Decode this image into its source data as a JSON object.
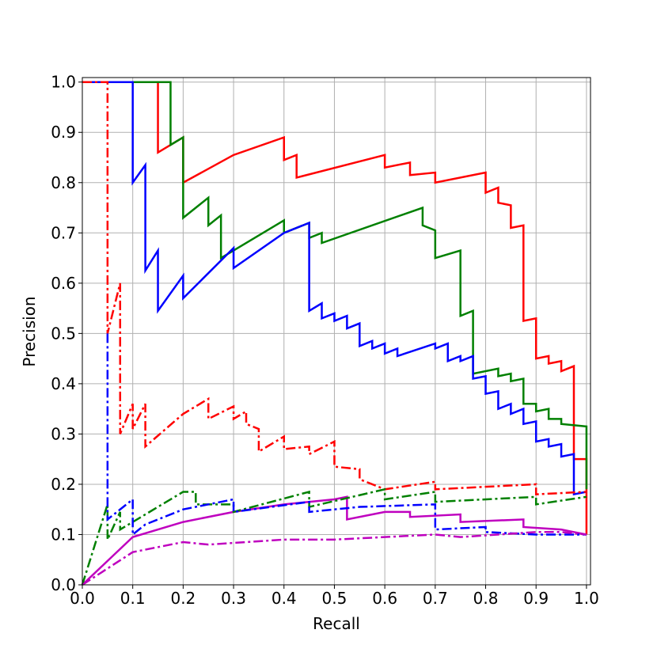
{
  "chart_data": {
    "type": "line",
    "xlabel": "Recall",
    "ylabel": "Precision",
    "xlim": [
      0,
      1.008
    ],
    "ylim": [
      0,
      1.009
    ],
    "grid": true,
    "xticks": [
      {
        "value": 0,
        "label": "0.0"
      },
      0.1,
      0.2,
      0.3,
      0.4,
      0.5,
      0.6,
      0.7,
      0.8,
      0.9,
      {
        "value": 1,
        "label": "1.0"
      }
    ],
    "yticks": [
      {
        "value": 0,
        "label": "0.0"
      },
      0.1,
      0.2,
      0.3,
      0.4,
      0.5,
      0.6,
      0.7,
      0.8,
      0.9,
      {
        "value": 1,
        "label": "1.0"
      }
    ],
    "series": [
      {
        "color": "#ff0000",
        "style": "solid",
        "x": [
          0,
          0.15,
          0.15,
          0.2,
          0.2,
          0.3,
          0.4,
          0.4,
          0.425,
          0.425,
          0.6,
          0.6,
          0.65,
          0.65,
          0.7,
          0.7,
          0.8,
          0.8,
          0.825,
          0.825,
          0.85,
          0.85,
          0.875,
          0.875,
          0.9,
          0.9,
          0.925,
          0.925,
          0.95,
          0.95,
          0.975,
          0.975,
          1.0,
          1.0
        ],
        "values": [
          1.0,
          1.0,
          0.86,
          0.89,
          0.8,
          0.855,
          0.89,
          0.845,
          0.855,
          0.81,
          0.855,
          0.83,
          0.84,
          0.815,
          0.82,
          0.8,
          0.82,
          0.78,
          0.79,
          0.76,
          0.755,
          0.71,
          0.715,
          0.525,
          0.53,
          0.45,
          0.455,
          0.44,
          0.445,
          0.425,
          0.435,
          0.25,
          0.25,
          0.1
        ]
      },
      {
        "color": "#008000",
        "style": "solid",
        "x": [
          0,
          0.175,
          0.175,
          0.2,
          0.2,
          0.25,
          0.25,
          0.275,
          0.275,
          0.4,
          0.4,
          0.45,
          0.45,
          0.475,
          0.475,
          0.675,
          0.675,
          0.7,
          0.7,
          0.75,
          0.75,
          0.775,
          0.775,
          0.825,
          0.825,
          0.85,
          0.85,
          0.875,
          0.875,
          0.9,
          0.9,
          0.925,
          0.925,
          0.95,
          0.95,
          1.0,
          1.0
        ],
        "values": [
          1.0,
          1.0,
          0.875,
          0.89,
          0.73,
          0.77,
          0.715,
          0.735,
          0.65,
          0.725,
          0.7,
          0.72,
          0.69,
          0.7,
          0.68,
          0.75,
          0.715,
          0.705,
          0.65,
          0.665,
          0.535,
          0.545,
          0.42,
          0.43,
          0.415,
          0.42,
          0.405,
          0.41,
          0.36,
          0.36,
          0.345,
          0.35,
          0.33,
          0.33,
          0.32,
          0.315,
          0.19
        ]
      },
      {
        "color": "#0000ff",
        "style": "solid",
        "x": [
          0,
          0.1,
          0.1,
          0.125,
          0.125,
          0.15,
          0.15,
          0.2,
          0.2,
          0.3,
          0.3,
          0.4,
          0.45,
          0.45,
          0.475,
          0.475,
          0.5,
          0.5,
          0.525,
          0.525,
          0.55,
          0.55,
          0.575,
          0.575,
          0.6,
          0.6,
          0.625,
          0.625,
          0.7,
          0.7,
          0.725,
          0.725,
          0.75,
          0.75,
          0.775,
          0.775,
          0.8,
          0.8,
          0.825,
          0.825,
          0.85,
          0.85,
          0.875,
          0.875,
          0.9,
          0.9,
          0.925,
          0.925,
          0.95,
          0.95,
          0.975,
          0.975,
          1.0
        ],
        "values": [
          1.0,
          1.0,
          0.8,
          0.835,
          0.625,
          0.665,
          0.545,
          0.615,
          0.57,
          0.67,
          0.63,
          0.7,
          0.72,
          0.545,
          0.56,
          0.53,
          0.54,
          0.525,
          0.535,
          0.51,
          0.52,
          0.475,
          0.485,
          0.47,
          0.48,
          0.46,
          0.47,
          0.455,
          0.48,
          0.47,
          0.48,
          0.445,
          0.455,
          0.445,
          0.455,
          0.41,
          0.415,
          0.38,
          0.385,
          0.35,
          0.36,
          0.34,
          0.35,
          0.32,
          0.325,
          0.285,
          0.29,
          0.275,
          0.28,
          0.255,
          0.26,
          0.18,
          0.185
        ]
      },
      {
        "color": "#bf00bf",
        "style": "solid",
        "x": [
          0,
          0.1,
          0.2,
          0.3,
          0.4,
          0.5,
          0.525,
          0.525,
          0.6,
          0.65,
          0.65,
          0.75,
          0.75,
          0.875,
          0.875,
          0.95,
          0.975,
          1.0
        ],
        "values": [
          0,
          0.095,
          0.125,
          0.145,
          0.16,
          0.17,
          0.175,
          0.13,
          0.145,
          0.145,
          0.135,
          0.14,
          0.125,
          0.13,
          0.115,
          0.11,
          0.105,
          0.1
        ]
      },
      {
        "color": "#ff0000",
        "style": "dashdot",
        "x": [
          0,
          0.05,
          0.05,
          0.075,
          0.075,
          0.1,
          0.1,
          0.125,
          0.125,
          0.2,
          0.25,
          0.25,
          0.3,
          0.3,
          0.325,
          0.325,
          0.35,
          0.35,
          0.4,
          0.4,
          0.45,
          0.45,
          0.5,
          0.5,
          0.55,
          0.55,
          0.6,
          0.7,
          0.7,
          0.9,
          0.9,
          1.0
        ],
        "values": [
          1.0,
          1.0,
          0.5,
          0.6,
          0.3,
          0.36,
          0.31,
          0.36,
          0.275,
          0.34,
          0.37,
          0.33,
          0.355,
          0.33,
          0.345,
          0.32,
          0.31,
          0.265,
          0.295,
          0.27,
          0.275,
          0.26,
          0.285,
          0.235,
          0.23,
          0.21,
          0.19,
          0.205,
          0.19,
          0.2,
          0.18,
          0.185
        ]
      },
      {
        "color": "#008000",
        "style": "dashdot",
        "x": [
          0,
          0.05,
          0.05,
          0.075,
          0.075,
          0.2,
          0.225,
          0.225,
          0.3,
          0.3,
          0.45,
          0.45,
          0.6,
          0.6,
          0.7,
          0.7,
          0.9,
          0.9,
          1.0
        ],
        "values": [
          0,
          0.16,
          0.09,
          0.145,
          0.11,
          0.185,
          0.185,
          0.16,
          0.16,
          0.145,
          0.185,
          0.155,
          0.19,
          0.17,
          0.185,
          0.165,
          0.175,
          0.16,
          0.175
        ]
      },
      {
        "color": "#0000ff",
        "style": "dashdot",
        "x": [
          0.05,
          0.05,
          0.1,
          0.1,
          0.125,
          0.2,
          0.3,
          0.3,
          0.45,
          0.45,
          0.55,
          0.7,
          0.7,
          0.8,
          0.8,
          0.9,
          1.0
        ],
        "values": [
          0.5,
          0.13,
          0.17,
          0.1,
          0.12,
          0.15,
          0.17,
          0.145,
          0.165,
          0.145,
          0.155,
          0.16,
          0.11,
          0.115,
          0.105,
          0.1,
          0.1
        ]
      },
      {
        "color": "#bf00bf",
        "style": "dashdot",
        "x": [
          0,
          0.1,
          0.2,
          0.25,
          0.4,
          0.5,
          0.7,
          0.75,
          0.9,
          0.95,
          1.0
        ],
        "values": [
          0,
          0.065,
          0.085,
          0.08,
          0.09,
          0.09,
          0.1,
          0.095,
          0.105,
          0.105,
          0.1
        ]
      }
    ]
  }
}
